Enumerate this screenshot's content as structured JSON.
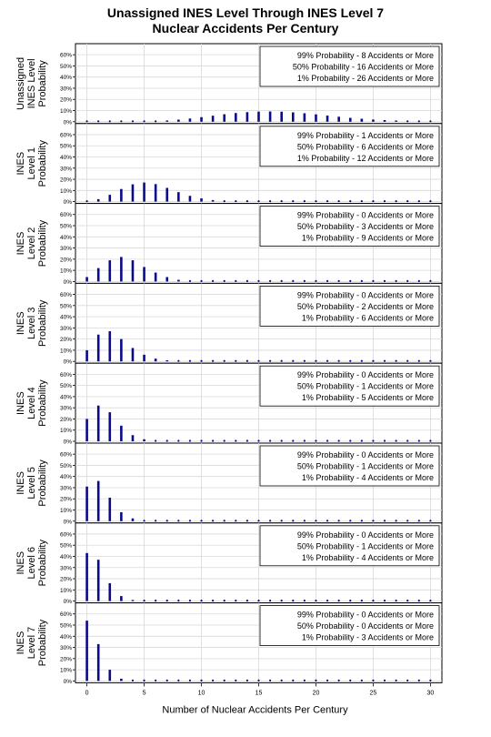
{
  "chart_data": {
    "type": "bar",
    "title": [
      "Unassigned INES Level Through INES Level 7",
      "Nuclear Accidents Per Century"
    ],
    "xlabel": "Number of Nuclear Accidents Per Century",
    "xlim": [
      -1,
      31
    ],
    "xticks": [
      0,
      5,
      10,
      15,
      20,
      25,
      30
    ],
    "ylim": [
      0,
      0.65
    ],
    "yticks": [
      "0%",
      "10%",
      "20%",
      "30%",
      "40%",
      "50%",
      "60%"
    ],
    "grid": true,
    "legend_placement": "top-right",
    "series_color": "#0a0a8c",
    "panels": [
      {
        "ylabel": [
          "Unassigned",
          "INES Level",
          "Probability"
        ],
        "legend": [
          "99% Probability - 8 Accidents or More",
          "50% Probability - 16 Accidents or More",
          "1% Probability - 26 Accidents or More"
        ],
        "values": [
          0,
          0,
          0.0001,
          0.0004,
          0.0011,
          0.003,
          0.006,
          0.011,
          0.019,
          0.029,
          0.041,
          0.054,
          0.067,
          0.078,
          0.086,
          0.091,
          0.092,
          0.09,
          0.084,
          0.076,
          0.066,
          0.055,
          0.045,
          0.035,
          0.027,
          0.02,
          0.015,
          0.011,
          0.007,
          0.005,
          0.003
        ]
      },
      {
        "ylabel": [
          "INES",
          "Level 1",
          "Probability"
        ],
        "legend": [
          "99% Probability - 1 Accidents or More",
          "50% Probability - 6 Accidents or More",
          "1% Probability - 12 Accidents or More"
        ],
        "values": [
          0.004,
          0.022,
          0.061,
          0.113,
          0.155,
          0.171,
          0.157,
          0.123,
          0.085,
          0.052,
          0.029,
          0.014,
          0.007,
          0.003,
          0.001,
          0,
          0,
          0,
          0,
          0,
          0,
          0,
          0,
          0,
          0,
          0,
          0,
          0,
          0,
          0,
          0
        ]
      },
      {
        "ylabel": [
          "INES",
          "Level 2",
          "Probability"
        ],
        "legend": [
          "99% Probability - 0 Accidents or More",
          "50% Probability - 3 Accidents or More",
          "1% Probability - 9 Accidents or More"
        ],
        "values": [
          0.04,
          0.12,
          0.19,
          0.22,
          0.19,
          0.13,
          0.08,
          0.04,
          0.015,
          0.006,
          0.002,
          0,
          0,
          0,
          0,
          0,
          0,
          0,
          0,
          0,
          0,
          0,
          0,
          0,
          0,
          0,
          0,
          0,
          0,
          0,
          0
        ]
      },
      {
        "ylabel": [
          "INES",
          "Level 3",
          "Probability"
        ],
        "legend": [
          "99% Probability - 0 Accidents or More",
          "50% Probability - 2 Accidents or More",
          "1% Probability - 6 Accidents or More"
        ],
        "values": [
          0.1,
          0.24,
          0.27,
          0.2,
          0.12,
          0.06,
          0.025,
          0.01,
          0.004,
          0.001,
          0,
          0,
          0,
          0,
          0,
          0,
          0,
          0,
          0,
          0,
          0,
          0,
          0,
          0,
          0,
          0,
          0,
          0,
          0,
          0,
          0
        ]
      },
      {
        "ylabel": [
          "INES",
          "Level 4",
          "Probability"
        ],
        "legend": [
          "99% Probability - 0 Accidents or More",
          "50% Probability - 1 Accidents or More",
          "1% Probability - 5 Accidents or More"
        ],
        "values": [
          0.2,
          0.32,
          0.26,
          0.14,
          0.055,
          0.018,
          0.006,
          0.002,
          0,
          0,
          0,
          0,
          0,
          0,
          0,
          0,
          0,
          0,
          0,
          0,
          0,
          0,
          0,
          0,
          0,
          0,
          0,
          0,
          0,
          0,
          0
        ]
      },
      {
        "ylabel": [
          "INES",
          "Level 5",
          "Probability"
        ],
        "legend": [
          "99% Probability - 0 Accidents or More",
          "50% Probability - 1 Accidents or More",
          "1% Probability - 4 Accidents or More"
        ],
        "values": [
          0.31,
          0.36,
          0.21,
          0.08,
          0.025,
          0.006,
          0.001,
          0,
          0,
          0,
          0,
          0,
          0,
          0,
          0,
          0,
          0,
          0,
          0,
          0,
          0,
          0,
          0,
          0,
          0,
          0,
          0,
          0,
          0,
          0,
          0
        ]
      },
      {
        "ylabel": [
          "INES",
          "Level 6",
          "Probability"
        ],
        "legend": [
          "99% Probability - 0 Accidents or More",
          "50% Probability - 1 Accidents or More",
          "1% Probability - 4 Accidents or More"
        ],
        "values": [
          0.43,
          0.37,
          0.16,
          0.045,
          0.01,
          0.002,
          0,
          0,
          0,
          0,
          0,
          0,
          0,
          0,
          0,
          0,
          0,
          0,
          0,
          0,
          0,
          0,
          0,
          0,
          0,
          0,
          0,
          0,
          0,
          0,
          0
        ]
      },
      {
        "ylabel": [
          "INES",
          "Level 7",
          "Probability"
        ],
        "legend": [
          "99% Probability - 0 Accidents or More",
          "50% Probability - 0 Accidents or More",
          "1% Probability - 3 Accidents or More"
        ],
        "values": [
          0.54,
          0.33,
          0.1,
          0.02,
          0.003,
          0,
          0,
          0,
          0,
          0,
          0,
          0,
          0,
          0,
          0,
          0,
          0,
          0,
          0,
          0,
          0,
          0,
          0,
          0,
          0,
          0,
          0,
          0,
          0,
          0,
          0
        ]
      }
    ]
  }
}
